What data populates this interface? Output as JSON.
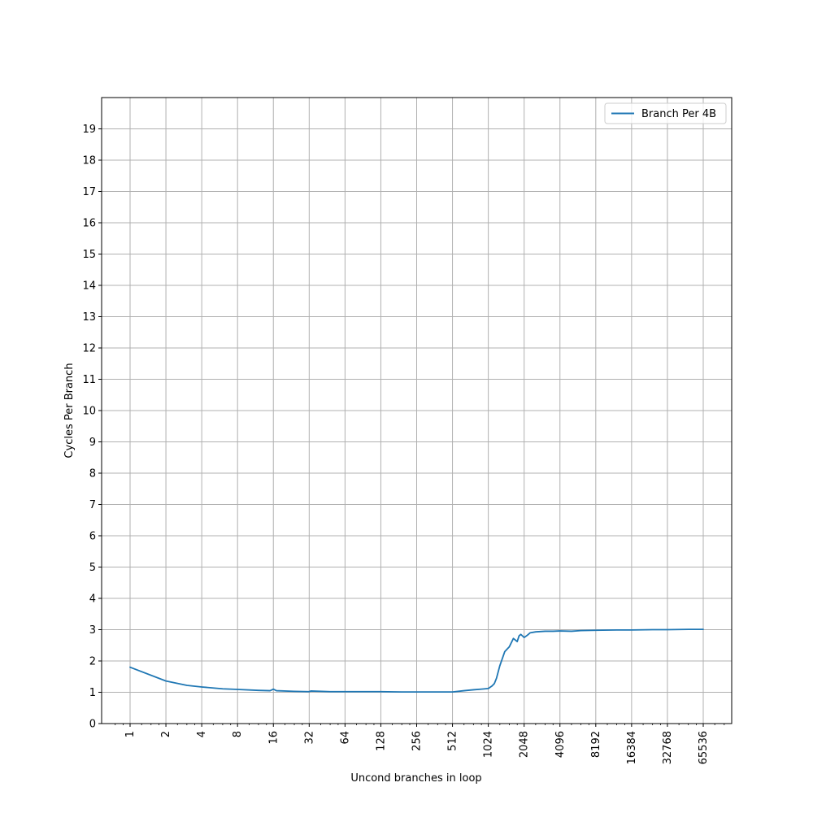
{
  "chart_data": {
    "type": "line",
    "title": "",
    "xlabel": "Uncond branches in loop",
    "ylabel": "Cycles Per Branch",
    "x_scale": "log2",
    "xlim": [
      0.7,
      100000
    ],
    "ylim": [
      0,
      20
    ],
    "x_ticks": [
      1,
      2,
      4,
      8,
      16,
      32,
      64,
      128,
      256,
      512,
      1024,
      2048,
      4096,
      8192,
      16384,
      32768,
      65536
    ],
    "x_tick_labels": [
      "1",
      "2",
      "4",
      "8",
      "16",
      "32",
      "64",
      "128",
      "256",
      "512",
      "1024",
      "2048",
      "4096",
      "8192",
      "16384",
      "32768",
      "65536"
    ],
    "y_ticks": [
      0,
      1,
      2,
      3,
      4,
      5,
      6,
      7,
      8,
      9,
      10,
      11,
      12,
      13,
      14,
      15,
      16,
      17,
      18,
      19
    ],
    "y_tick_labels": [
      "0",
      "1",
      "2",
      "3",
      "4",
      "5",
      "6",
      "7",
      "8",
      "9",
      "10",
      "11",
      "12",
      "13",
      "14",
      "15",
      "16",
      "17",
      "18",
      "19"
    ],
    "grid": true,
    "legend_position": "top-right",
    "series": [
      {
        "name": "Branch Per 4B",
        "color": "#1f77b4",
        "x": [
          1,
          2,
          3,
          4,
          6,
          8,
          12,
          15,
          16,
          17,
          24,
          32,
          33,
          48,
          64,
          96,
          128,
          192,
          256,
          384,
          512,
          640,
          768,
          900,
          1024,
          1100,
          1152,
          1200,
          1280,
          1408,
          1536,
          1664,
          1792,
          1856,
          1920,
          2048,
          2176,
          2304,
          2560,
          3072,
          3584,
          4096,
          5120,
          6144,
          8192,
          12288,
          16384,
          24576,
          32768,
          49152,
          65536
        ],
        "y": [
          1.8,
          1.36,
          1.22,
          1.17,
          1.11,
          1.09,
          1.06,
          1.05,
          1.1,
          1.05,
          1.03,
          1.02,
          1.04,
          1.02,
          1.02,
          1.02,
          1.02,
          1.01,
          1.01,
          1.01,
          1.01,
          1.05,
          1.08,
          1.1,
          1.12,
          1.2,
          1.28,
          1.45,
          1.85,
          2.3,
          2.45,
          2.72,
          2.62,
          2.8,
          2.85,
          2.75,
          2.82,
          2.9,
          2.93,
          2.95,
          2.95,
          2.96,
          2.95,
          2.97,
          2.98,
          2.99,
          2.99,
          3.0,
          3.0,
          3.01,
          3.01
        ]
      }
    ]
  }
}
